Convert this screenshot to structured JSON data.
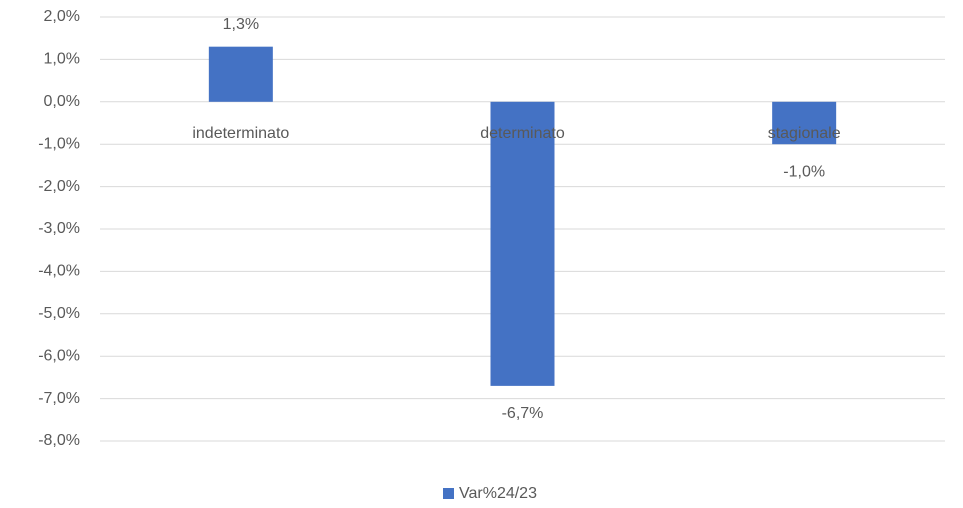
{
  "chart_data": {
    "type": "bar",
    "categories": [
      "indeterminato",
      "determinato",
      "stagionale"
    ],
    "series": [
      {
        "name": "Var%24/23",
        "color": "#4472c4",
        "values": [
          1.3,
          -6.7,
          -1.0
        ],
        "value_labels": [
          "1,3%",
          "-6,7%",
          "-1,0%"
        ]
      }
    ],
    "ylim": [
      -8,
      2
    ],
    "yticks": [
      {
        "value": 2,
        "label": "2,0%"
      },
      {
        "value": 1,
        "label": "1,0%"
      },
      {
        "value": 0,
        "label": "0,0%"
      },
      {
        "value": -1,
        "label": "-1,0%"
      },
      {
        "value": -2,
        "label": "-2,0%"
      },
      {
        "value": -3,
        "label": "-3,0%"
      },
      {
        "value": -4,
        "label": "-4,0%"
      },
      {
        "value": -5,
        "label": "-5,0%"
      },
      {
        "value": -6,
        "label": "-6,0%"
      },
      {
        "value": -7,
        "label": "-7,0%"
      },
      {
        "value": -8,
        "label": "-8,0%"
      }
    ],
    "grid": true,
    "legend": "bottom"
  }
}
